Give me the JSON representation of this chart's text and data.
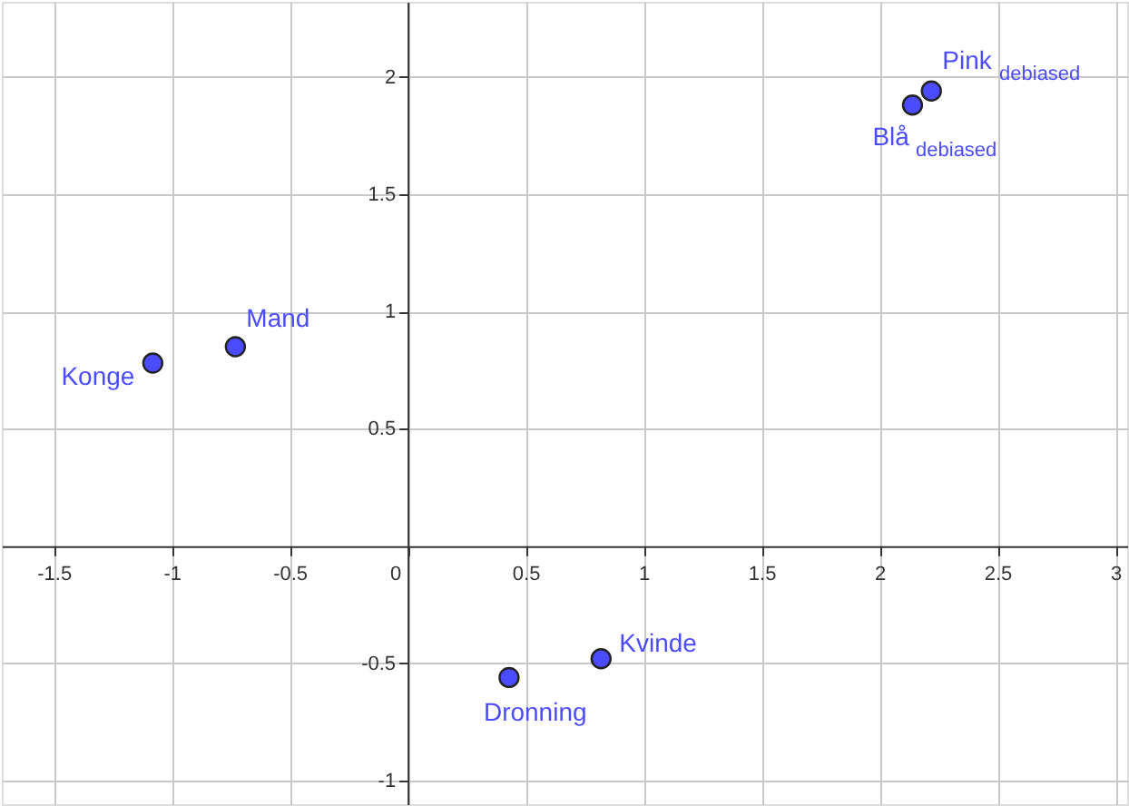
{
  "chart_data": {
    "type": "scatter",
    "x": [
      -1.08,
      -0.73,
      0.43,
      0.82,
      2.14,
      2.22
    ],
    "series": [
      {
        "color": "#4b4bff",
        "values": [
          0.78,
          0.85,
          -0.56,
          -0.48,
          1.88,
          1.94
        ]
      }
    ],
    "annotations": [
      {
        "text": "Konge",
        "x": -1.08,
        "y": 0.78
      },
      {
        "text": "Mand",
        "x": -0.73,
        "y": 0.85
      },
      {
        "text": "Dronning",
        "x": 0.43,
        "y": -0.56
      },
      {
        "text": "Kvinde",
        "x": 0.82,
        "y": -0.48
      },
      {
        "text": "Blå$_{debiased}$",
        "x": 2.14,
        "y": 1.88
      },
      {
        "text": "Pink$_{debiased}$",
        "x": 2.22,
        "y": 1.94
      }
    ],
    "xlim": [
      -1.72,
      3.05
    ],
    "ylim": [
      -1.1,
      2.32
    ],
    "xticks": [
      -1.5,
      -1,
      -0.5,
      0,
      0.5,
      1,
      1.5,
      2,
      2.5,
      3
    ],
    "yticks": [
      -1,
      -0.5,
      0.5,
      1,
      1.5,
      2
    ],
    "grid": true,
    "marker": "circle"
  }
}
